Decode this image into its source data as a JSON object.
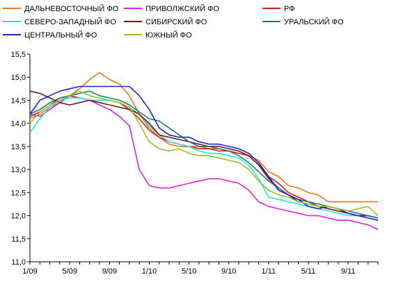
{
  "chart_data": {
    "type": "line",
    "title": "",
    "xlabel": "",
    "ylabel": "",
    "x": [
      "1/09",
      "2/09",
      "3/09",
      "4/09",
      "5/09",
      "6/09",
      "7/09",
      "8/09",
      "9/09",
      "10/09",
      "11/09",
      "12/09",
      "1/10",
      "2/10",
      "3/10",
      "4/10",
      "5/10",
      "6/10",
      "7/10",
      "8/10",
      "9/10",
      "10/10",
      "11/10",
      "12/10",
      "1/11",
      "2/11",
      "3/11",
      "4/11",
      "5/11",
      "6/11",
      "7/11",
      "8/11",
      "9/11",
      "10/11",
      "11/11",
      "12/11"
    ],
    "x_tick_labels": [
      "1/09",
      "5/09",
      "9/09",
      "1/10",
      "5/10",
      "9/10",
      "1/11",
      "5/11",
      "9/11"
    ],
    "x_tick_labels_index": [
      0,
      4,
      8,
      12,
      16,
      20,
      24,
      28,
      32
    ],
    "y_ticks": [
      "11,0",
      "11,5",
      "12,0",
      "12,5",
      "13,0",
      "13,5",
      "14,0",
      "14,5",
      "15,0",
      "15,5"
    ],
    "ylim": [
      11.0,
      15.5
    ],
    "grid": false,
    "legend_position": "top",
    "series": [
      {
        "name": "ДАЛЬНЕВОСТОЧНЫЙ ФО",
        "color": "#e8781e",
        "values": [
          14.1,
          14.2,
          14.35,
          14.45,
          14.6,
          14.75,
          14.95,
          15.1,
          14.95,
          14.85,
          14.6,
          14.2,
          13.9,
          13.7,
          13.55,
          13.5,
          13.5,
          13.5,
          13.45,
          13.45,
          13.4,
          13.35,
          13.3,
          13.2,
          12.95,
          12.85,
          12.65,
          12.6,
          12.5,
          12.45,
          12.3,
          12.3,
          12.3,
          12.3,
          12.3,
          12.3
        ]
      },
      {
        "name": "ПРИВОЛЖСКИЙ ФО",
        "color": "#e020e0",
        "values": [
          14.2,
          14.15,
          14.3,
          14.45,
          14.6,
          14.55,
          14.5,
          14.4,
          14.3,
          14.15,
          13.95,
          13.0,
          12.65,
          12.6,
          12.6,
          12.65,
          12.7,
          12.75,
          12.8,
          12.8,
          12.75,
          12.7,
          12.55,
          12.3,
          12.2,
          12.15,
          12.1,
          12.05,
          12.0,
          12.0,
          11.95,
          11.9,
          11.9,
          11.85,
          11.8,
          11.7
        ]
      },
      {
        "name": "РФ",
        "color": "#e01818",
        "values": [
          14.15,
          14.25,
          14.4,
          14.55,
          14.6,
          14.55,
          14.5,
          14.5,
          14.5,
          14.45,
          14.3,
          14.1,
          13.85,
          13.7,
          13.6,
          13.55,
          13.5,
          13.45,
          13.45,
          13.4,
          13.4,
          13.35,
          13.3,
          13.1,
          12.85,
          12.7,
          12.5,
          12.4,
          12.3,
          12.2,
          12.15,
          12.1,
          12.05,
          12.0,
          12.0,
          11.95
        ]
      },
      {
        "name": "СЕВЕРО-ЗАПАДНЫЙ ФО",
        "color": "#18e8e8",
        "values": [
          13.8,
          14.1,
          14.35,
          14.5,
          14.55,
          14.55,
          14.5,
          14.5,
          14.5,
          14.45,
          14.35,
          14.2,
          13.95,
          13.75,
          13.6,
          13.55,
          13.5,
          13.4,
          13.35,
          13.35,
          13.3,
          13.25,
          13.1,
          12.8,
          12.4,
          12.35,
          12.3,
          12.25,
          12.2,
          12.15,
          12.1,
          12.05,
          12.0,
          12.0,
          11.95,
          11.9
        ]
      },
      {
        "name": "СИБИРСКИЙ ФО",
        "color": "#701818",
        "values": [
          14.7,
          14.65,
          14.55,
          14.45,
          14.4,
          14.45,
          14.5,
          14.45,
          14.4,
          14.35,
          14.3,
          14.2,
          14.0,
          13.75,
          13.7,
          13.65,
          13.6,
          13.55,
          13.5,
          13.5,
          13.45,
          13.4,
          13.3,
          13.1,
          12.8,
          12.6,
          12.45,
          12.3,
          12.25,
          12.2,
          12.15,
          12.1,
          12.05,
          12.0,
          12.0,
          11.95
        ]
      },
      {
        "name": "УРАЛЬСКИЙ ФО",
        "color": "#207878",
        "values": [
          14.2,
          14.3,
          14.45,
          14.55,
          14.6,
          14.65,
          14.7,
          14.6,
          14.55,
          14.5,
          14.4,
          14.25,
          14.1,
          14.05,
          13.9,
          13.75,
          13.6,
          13.5,
          13.5,
          13.45,
          13.4,
          13.3,
          13.15,
          12.95,
          12.75,
          12.6,
          12.45,
          12.35,
          12.3,
          12.25,
          12.2,
          12.15,
          12.1,
          12.05,
          12.0,
          11.95
        ]
      },
      {
        "name": "ЦЕНТРАЛЬНЫЙ ФО",
        "color": "#2020d8",
        "values": [
          14.2,
          14.5,
          14.6,
          14.7,
          14.75,
          14.8,
          14.8,
          14.8,
          14.8,
          14.8,
          14.8,
          14.6,
          14.3,
          13.9,
          13.75,
          13.7,
          13.7,
          13.6,
          13.55,
          13.55,
          13.5,
          13.45,
          13.35,
          13.15,
          12.85,
          12.55,
          12.45,
          12.35,
          12.2,
          12.15,
          12.2,
          12.15,
          12.05,
          12.0,
          11.95,
          11.9
        ]
      },
      {
        "name": "ЮЖНЫЙ ФО",
        "color": "#98c020",
        "values": [
          14.0,
          14.25,
          14.4,
          14.5,
          14.6,
          14.7,
          14.6,
          14.55,
          14.5,
          14.45,
          14.35,
          14.0,
          13.6,
          13.45,
          13.4,
          13.45,
          13.35,
          13.3,
          13.3,
          13.25,
          13.2,
          13.15,
          13.0,
          12.75,
          12.55,
          12.45,
          12.4,
          12.3,
          12.25,
          12.2,
          12.2,
          12.15,
          12.1,
          12.15,
          12.2,
          12.0
        ]
      }
    ]
  }
}
